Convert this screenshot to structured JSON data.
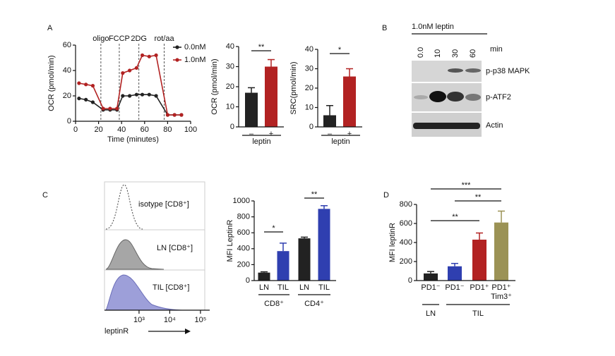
{
  "panel_labels": [
    "A",
    "B",
    "C",
    "D"
  ],
  "chart_data": [
    {
      "type": "line",
      "ylabel": "OCR (pmol/min)",
      "xlabel": "Time (minutes)",
      "x": [
        3,
        9,
        15,
        24,
        30,
        36,
        41,
        47,
        53,
        58,
        64,
        70,
        80,
        86,
        92
      ],
      "series": [
        {
          "name": "0.0nM",
          "color": "#222222",
          "values": [
            18,
            17,
            15,
            9,
            9,
            9,
            20,
            20,
            21,
            21,
            21,
            20,
            5,
            5,
            5
          ]
        },
        {
          "name": "1.0nM",
          "color": "#b22222",
          "values": [
            30,
            29,
            28,
            10,
            10,
            10,
            38,
            40,
            42,
            52,
            51,
            52,
            5,
            5,
            5
          ]
        }
      ],
      "xlim": [
        0,
        100
      ],
      "xticks": [
        0,
        20,
        40,
        60,
        80,
        100
      ],
      "ylim": [
        0,
        60
      ],
      "yticks": [
        0,
        20,
        40,
        60
      ],
      "events": [
        {
          "label": "oligo",
          "x": 22
        },
        {
          "label": "FCCP",
          "x": 38
        },
        {
          "label": "2DG",
          "x": 55
        },
        {
          "label": "rot/aa",
          "x": 77
        }
      ]
    },
    {
      "type": "bar",
      "ylabel": "OCR (pmol/min)",
      "xlabel": "leptin",
      "categories": [
        "–",
        "+"
      ],
      "values": [
        17,
        30
      ],
      "errors": [
        2.5,
        3.5
      ],
      "colors": [
        "#222222",
        "#b22222"
      ],
      "ylim": [
        0,
        40
      ],
      "yticks": [
        0,
        10,
        20,
        30,
        40
      ],
      "annotations": [
        "**"
      ]
    },
    {
      "type": "bar",
      "ylabel": "SRC(pmol/min)",
      "xlabel": "leptin",
      "categories": [
        "–",
        "+"
      ],
      "values": [
        6,
        26
      ],
      "errors": [
        5,
        4
      ],
      "colors": [
        "#222222",
        "#b22222"
      ],
      "ylim": [
        0,
        40
      ],
      "yticks": [
        0,
        10,
        20,
        30,
        40
      ],
      "annotations": [
        "*"
      ]
    },
    {
      "type": "blot",
      "title": "1.0nM leptin",
      "lanes": [
        "0.0",
        "10",
        "30",
        "60"
      ],
      "lane_unit": "min",
      "rows": [
        "p-p38 MAPK",
        "p-ATF2",
        "Actin"
      ]
    },
    {
      "type": "flow",
      "xlabel": "leptinR",
      "xscale": "log",
      "xlim": [
        75,
        200000
      ],
      "xticks": [
        {
          "value": 1000,
          "label": "10³"
        },
        {
          "value": 10000,
          "label": "10⁴"
        },
        {
          "value": 100000,
          "label": "10⁵"
        }
      ],
      "samples": [
        {
          "name": "isotype [CD8⁺]",
          "color": "#222222"
        },
        {
          "name": "LN [CD8⁺]",
          "color": "#222222"
        },
        {
          "name": "TIL [CD8⁺]",
          "color": "#3b4ba8"
        }
      ]
    },
    {
      "type": "bar",
      "ylabel": "MFI LeptinR",
      "categories": [
        "LN",
        "TIL",
        "LN",
        "TIL"
      ],
      "values": [
        100,
        370,
        530,
        900
      ],
      "errors": [
        10,
        100,
        15,
        40
      ],
      "colors": [
        "#222222",
        "#2f3fb0",
        "#222222",
        "#2f3fb0"
      ],
      "ylim": [
        0,
        1000
      ],
      "yticks": [
        0,
        200,
        400,
        600,
        800,
        1000
      ],
      "annotations": [
        "*",
        "**"
      ],
      "groups": [
        "CD8⁺",
        "CD4⁺"
      ]
    },
    {
      "type": "bar",
      "ylabel": "MFI leptinR",
      "categories": [
        "PD1⁻",
        "PD1⁻",
        "PD1⁺",
        "PD1⁺ Tim3⁺"
      ],
      "values": [
        75,
        150,
        430,
        610
      ],
      "errors": [
        20,
        30,
        70,
        120
      ],
      "colors": [
        "#222222",
        "#2f3fb0",
        "#b22222",
        "#9b9255"
      ],
      "ylim": [
        0,
        800
      ],
      "yticks": [
        0,
        200,
        400,
        600,
        800
      ],
      "annotations": [
        "***",
        "**",
        "**"
      ],
      "groups": [
        "LN",
        "TIL"
      ]
    }
  ]
}
